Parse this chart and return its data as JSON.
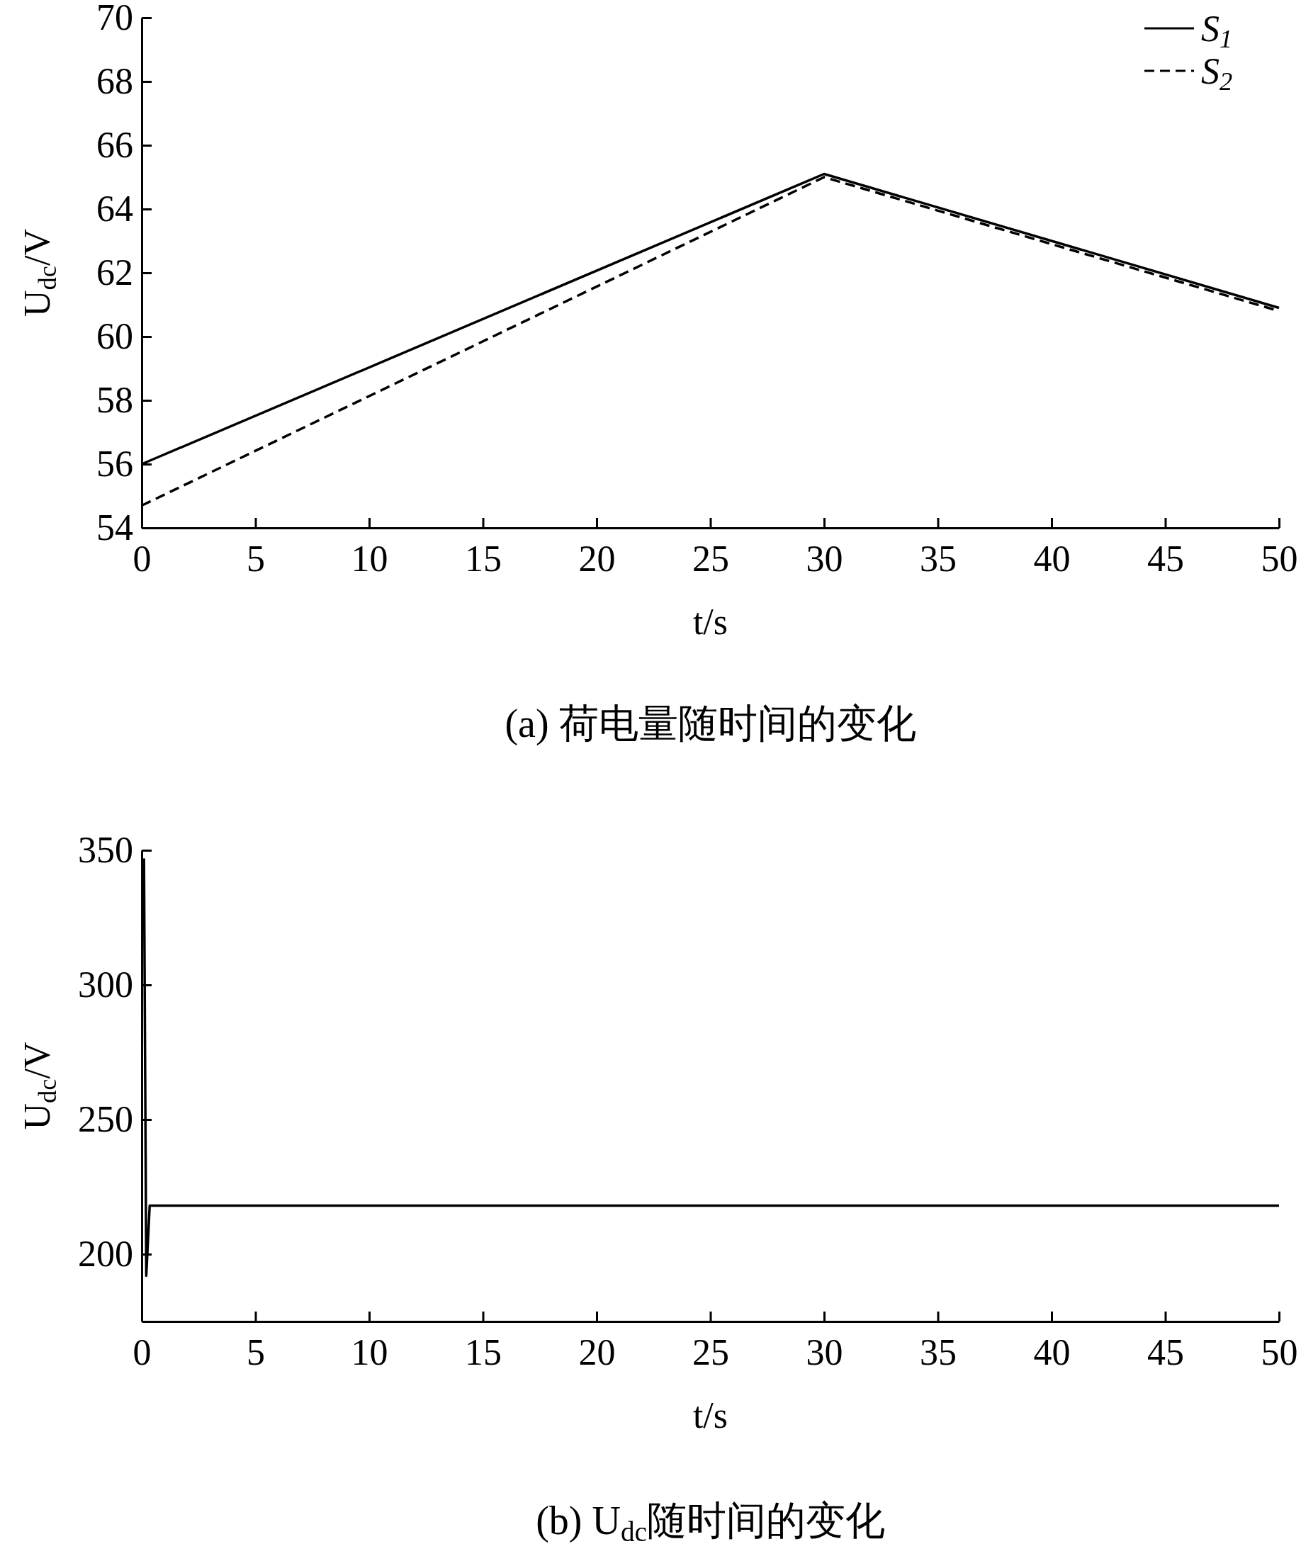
{
  "chart_data": [
    {
      "type": "line",
      "title": "(a) 荷电量随时间的变化",
      "xlabel": "t/s",
      "ylabel": "U$_{dc}$/V",
      "x": [
        0,
        30,
        50
      ],
      "series": [
        {
          "name": "S$_{1}$",
          "color": "#000000",
          "values": [
            56.0,
            65.1,
            60.9
          ],
          "line_style": "solid"
        },
        {
          "name": "S$_{2}$",
          "color": "#000000",
          "values": [
            54.7,
            65.0,
            60.8
          ],
          "line_style": "dashed"
        }
      ],
      "xlim": [
        0,
        50
      ],
      "xticks": [
        0,
        5,
        10,
        15,
        20,
        25,
        30,
        35,
        40,
        45,
        50
      ],
      "ylim": [
        54,
        70
      ],
      "yticks": [
        54,
        56,
        58,
        60,
        62,
        64,
        66,
        68,
        70
      ],
      "legend": "top right",
      "grid": false
    },
    {
      "type": "line",
      "title": "(b) U$_{dc}$随时间的变化",
      "xlabel": "t/s",
      "ylabel": "U$_{dc}$/V",
      "x": [
        0.1,
        0.2,
        0.35,
        50
      ],
      "series": [
        {
          "color": "#000000",
          "values": [
            347,
            192,
            218,
            218
          ]
        }
      ],
      "xlim": [
        0,
        50
      ],
      "xticks": [
        0,
        5,
        10,
        15,
        20,
        25,
        30,
        35,
        40,
        45,
        50
      ],
      "ylim": [
        175,
        350
      ],
      "yticks": [
        200,
        250,
        300,
        350
      ],
      "legend": false,
      "grid": false
    }
  ]
}
